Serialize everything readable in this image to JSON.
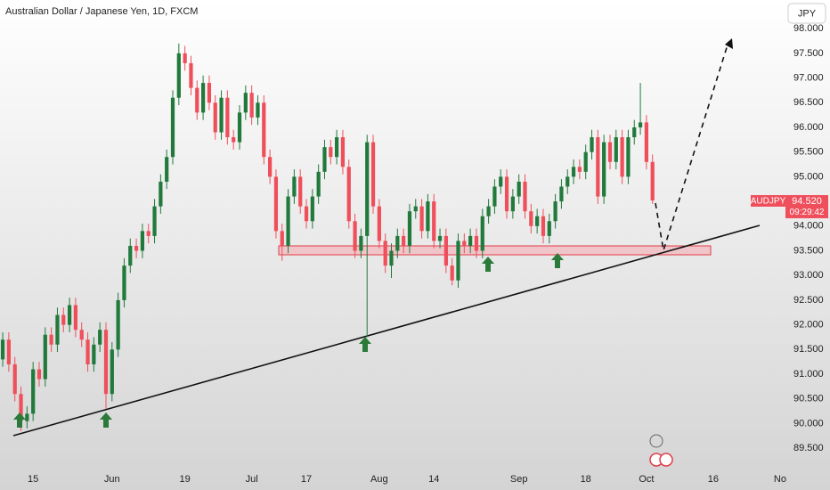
{
  "chart_data": {
    "type": "candlestick",
    "title": "Australian Dollar / Japanese Yen, 1D, FXCM",
    "currency": "JPY",
    "symbol": "AUDJPY",
    "last_price": {
      "value": 94.52,
      "label": "94.520"
    },
    "countdown": "09:29:42",
    "up_color": "#217a3c",
    "down_color": "#ef4f5b",
    "grid": false,
    "x": [
      0,
      1,
      2,
      3,
      4,
      5,
      6,
      7,
      8,
      9,
      10,
      11,
      12,
      13,
      14,
      15,
      16,
      17,
      18,
      19,
      20,
      21,
      22,
      23,
      24,
      25,
      26,
      27,
      28,
      29,
      30,
      31,
      32,
      33,
      34,
      35,
      36,
      37,
      38,
      39,
      40,
      41,
      42,
      43,
      44,
      45,
      46,
      47,
      48,
      49,
      50,
      51,
      52,
      53,
      54,
      55,
      56,
      57,
      58,
      59,
      60,
      61,
      62,
      63,
      64,
      65,
      66,
      67,
      68,
      69,
      70,
      71,
      72,
      73,
      74,
      75,
      76,
      77,
      78,
      79,
      80,
      81,
      82,
      83,
      84,
      85,
      86,
      87,
      88,
      89,
      90,
      91,
      92,
      93,
      94,
      95,
      96,
      97,
      98,
      99,
      100,
      101,
      102,
      103,
      104,
      105,
      106,
      107
    ],
    "open": [
      91.3,
      91.7,
      91.2,
      90.6,
      90.05,
      90.2,
      91.1,
      90.9,
      91.8,
      91.6,
      92.2,
      92.0,
      92.4,
      91.9,
      91.7,
      91.2,
      91.6,
      91.9,
      90.6,
      91.5,
      92.5,
      93.2,
      93.6,
      93.5,
      93.9,
      93.8,
      94.4,
      94.9,
      95.4,
      96.6,
      97.5,
      97.3,
      96.8,
      96.3,
      96.9,
      96.5,
      95.9,
      96.6,
      95.8,
      95.7,
      96.3,
      96.7,
      96.2,
      96.5,
      95.4,
      95.0,
      93.9,
      93.6,
      94.6,
      95.0,
      94.4,
      94.1,
      94.6,
      95.1,
      95.6,
      95.4,
      95.8,
      95.2,
      94.1,
      93.5,
      93.8,
      95.7,
      94.4,
      93.7,
      93.2,
      93.5,
      93.8,
      93.6,
      94.3,
      94.4,
      93.9,
      94.5,
      93.7,
      93.8,
      93.2,
      92.9,
      93.7,
      93.6,
      93.8,
      93.5,
      94.2,
      94.4,
      94.8,
      95.0,
      94.3,
      94.6,
      94.9,
      94.3,
      94.0,
      94.2,
      93.8,
      94.1,
      94.5,
      94.8,
      95.0,
      95.2,
      95.1,
      95.5,
      95.8,
      94.6,
      95.7,
      95.3,
      95.8,
      95.0,
      95.8,
      96.0,
      96.1,
      95.3
    ],
    "high": [
      91.85,
      91.85,
      91.35,
      90.75,
      90.35,
      91.25,
      91.25,
      91.95,
      91.95,
      92.35,
      92.35,
      92.55,
      92.55,
      92.05,
      91.85,
      91.75,
      92.05,
      92.05,
      91.65,
      92.65,
      93.35,
      93.75,
      93.75,
      94.05,
      94.05,
      94.55,
      95.05,
      95.55,
      96.75,
      97.7,
      97.65,
      97.45,
      96.95,
      97.05,
      97.05,
      96.65,
      96.75,
      96.75,
      95.95,
      96.45,
      96.85,
      96.85,
      96.65,
      96.65,
      95.55,
      95.15,
      94.05,
      94.75,
      95.15,
      95.15,
      94.55,
      94.75,
      95.25,
      95.75,
      95.75,
      95.95,
      95.95,
      95.35,
      94.25,
      93.95,
      95.85,
      95.85,
      94.55,
      93.85,
      93.65,
      93.95,
      93.95,
      94.45,
      94.55,
      94.55,
      94.65,
      94.65,
      93.95,
      93.95,
      93.35,
      93.85,
      93.85,
      93.95,
      93.95,
      94.35,
      94.55,
      94.95,
      95.15,
      95.15,
      94.75,
      95.05,
      95.05,
      94.45,
      94.35,
      94.35,
      94.25,
      94.65,
      94.95,
      95.15,
      95.35,
      95.35,
      95.65,
      95.95,
      95.95,
      95.85,
      95.85,
      95.95,
      95.95,
      95.95,
      96.15,
      96.9,
      96.25,
      95.45
    ],
    "low": [
      91.15,
      91.05,
      90.45,
      89.85,
      89.9,
      90.05,
      90.75,
      90.75,
      91.45,
      91.45,
      91.85,
      91.85,
      91.75,
      91.55,
      91.05,
      91.05,
      91.45,
      90.3,
      90.45,
      91.35,
      92.35,
      93.05,
      93.35,
      93.35,
      93.65,
      93.65,
      94.25,
      94.75,
      95.25,
      96.45,
      97.15,
      96.65,
      96.15,
      96.15,
      96.35,
      95.75,
      95.75,
      95.65,
      95.55,
      95.55,
      96.15,
      96.05,
      96.05,
      95.25,
      94.85,
      93.75,
      93.3,
      93.45,
      94.45,
      94.25,
      93.95,
      93.95,
      94.45,
      94.95,
      95.25,
      95.25,
      95.05,
      93.95,
      93.35,
      93.35,
      91.75,
      94.25,
      93.55,
      93.05,
      92.95,
      93.35,
      93.45,
      93.45,
      94.15,
      93.75,
      93.75,
      93.55,
      93.55,
      93.05,
      92.8,
      92.75,
      93.45,
      93.45,
      93.35,
      93.35,
      94.05,
      94.25,
      94.65,
      94.15,
      94.15,
      94.45,
      94.15,
      93.85,
      93.85,
      93.65,
      93.65,
      93.95,
      94.35,
      94.65,
      94.85,
      94.95,
      94.95,
      95.35,
      94.45,
      94.45,
      95.15,
      95.15,
      94.85,
      94.85,
      95.65,
      95.85,
      95.15,
      94.45
    ],
    "close": [
      91.7,
      91.2,
      90.6,
      90.05,
      90.2,
      91.1,
      90.9,
      91.8,
      91.6,
      92.2,
      92.0,
      92.4,
      91.9,
      91.7,
      91.2,
      91.6,
      91.9,
      90.6,
      91.5,
      92.5,
      93.2,
      93.6,
      93.5,
      93.9,
      93.8,
      94.4,
      94.9,
      95.4,
      96.6,
      97.5,
      97.3,
      96.8,
      96.3,
      96.9,
      96.5,
      95.9,
      96.6,
      95.8,
      95.7,
      96.3,
      96.7,
      96.2,
      96.5,
      95.4,
      95.0,
      93.9,
      93.6,
      94.6,
      95.0,
      94.4,
      94.1,
      94.6,
      95.1,
      95.6,
      95.4,
      95.8,
      95.2,
      94.1,
      93.5,
      93.8,
      95.7,
      94.4,
      93.7,
      93.2,
      93.5,
      93.8,
      93.6,
      94.3,
      94.4,
      93.9,
      94.5,
      93.7,
      93.8,
      93.2,
      92.9,
      93.7,
      93.6,
      93.8,
      93.5,
      94.2,
      94.4,
      94.8,
      95.0,
      94.3,
      94.6,
      94.9,
      94.3,
      94.0,
      94.2,
      93.8,
      94.1,
      94.5,
      94.8,
      95.0,
      95.2,
      95.1,
      95.5,
      95.8,
      94.6,
      95.7,
      95.3,
      95.8,
      95.0,
      95.8,
      96.0,
      96.1,
      95.3,
      94.52
    ],
    "xlim": [
      -0.45,
      128.6
    ],
    "xticks": [
      {
        "value": 5,
        "label": "15"
      },
      {
        "value": 18,
        "label": "Jun"
      },
      {
        "value": 30,
        "label": "19"
      },
      {
        "value": 41,
        "label": "Jul"
      },
      {
        "value": 50,
        "label": "17"
      },
      {
        "value": 62,
        "label": "Aug"
      },
      {
        "value": 71,
        "label": "14"
      },
      {
        "value": 85,
        "label": "Sep"
      },
      {
        "value": 96,
        "label": "18"
      },
      {
        "value": 106,
        "label": "Oct"
      },
      {
        "value": 117,
        "label": "16"
      },
      {
        "value": 128,
        "label": "No"
      }
    ],
    "ylim": [
      89.16,
      98.58
    ],
    "yticks": [
      {
        "value": 89.5,
        "label": "89.500"
      },
      {
        "value": 90,
        "label": "90.000"
      },
      {
        "value": 90.5,
        "label": "90.500"
      },
      {
        "value": 91,
        "label": "91.000"
      },
      {
        "value": 91.5,
        "label": "91.500"
      },
      {
        "value": 92,
        "label": "92.000"
      },
      {
        "value": 92.5,
        "label": "92.500"
      },
      {
        "value": 93,
        "label": "93.000"
      },
      {
        "value": 93.5,
        "label": "93.500"
      },
      {
        "value": 94,
        "label": "94.000"
      },
      {
        "value": 94.5,
        "label": "94.500"
      },
      {
        "value": 95,
        "label": "95.000"
      },
      {
        "value": 95.5,
        "label": "95.500"
      },
      {
        "value": 96,
        "label": "96.000"
      },
      {
        "value": 96.5,
        "label": "96.500"
      },
      {
        "value": 97,
        "label": "97.000"
      },
      {
        "value": 97.5,
        "label": "97.500"
      },
      {
        "value": 98,
        "label": "98.000"
      }
    ]
  }
}
